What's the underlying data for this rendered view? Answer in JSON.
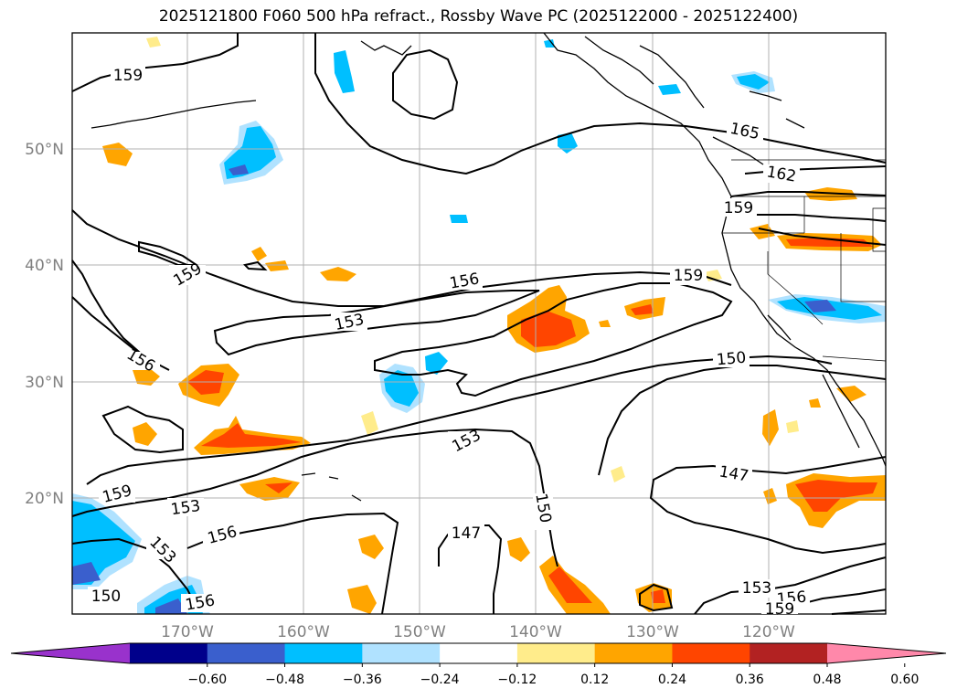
{
  "title": "2025121800 F060 500 hPa refract., Rossby Wave PC (2025122000 - 2025122400)",
  "map": {
    "lat_labels": [
      "50°N",
      "40°N",
      "30°N",
      "20°N"
    ],
    "lon_labels": [
      "170°W",
      "160°W",
      "150°W",
      "140°W",
      "130°W",
      "120°W"
    ],
    "contour_labels": [
      "159",
      "159",
      "156",
      "153",
      "156",
      "159",
      "153",
      "156",
      "153",
      "150",
      "156",
      "147",
      "153",
      "150",
      "159",
      "150",
      "147",
      "165",
      "162",
      "159",
      "153",
      "156",
      "159"
    ]
  },
  "colorbar": {
    "ticks": [
      "−0.60",
      "−0.48",
      "−0.36",
      "−0.24",
      "−0.12",
      "0.12",
      "0.24",
      "0.36",
      "0.48",
      "0.60"
    ],
    "colors": [
      "#9932cc",
      "#00008b",
      "#3a5fcd",
      "#00bfff",
      "#b0e2ff",
      "#ffffff",
      "#ffec8b",
      "#ffa500",
      "#ff4500",
      "#b22222",
      "#ff88aa"
    ]
  }
}
